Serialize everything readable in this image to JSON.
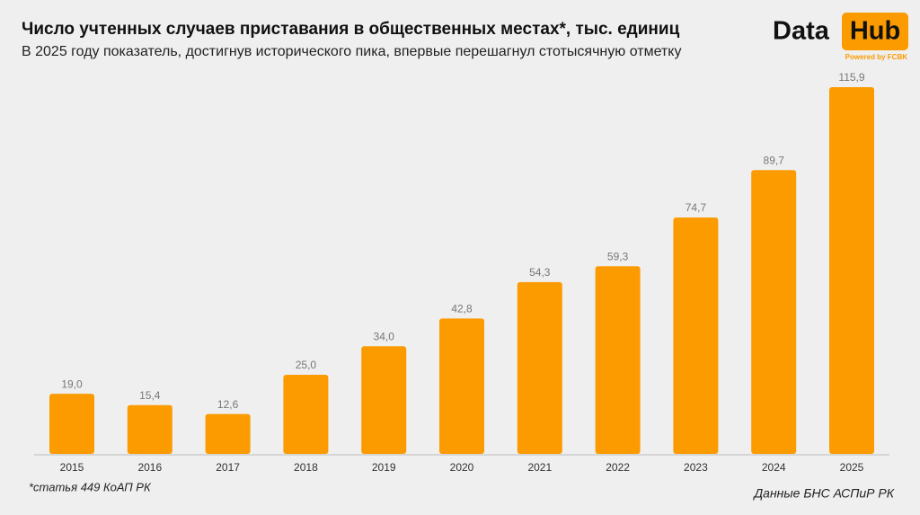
{
  "chart_data": {
    "type": "bar",
    "title": "Число учтенных случаев приставания в общественных местах*, тыс. единиц",
    "subtitle": "В 2025 году показатель, достигнув исторического пика, впервые перешагнул стотысячную отметку",
    "categories": [
      "2015",
      "2016",
      "2017",
      "2018",
      "2019",
      "2020",
      "2021",
      "2022",
      "2023",
      "2024",
      "2025"
    ],
    "values": [
      19.0,
      15.4,
      12.6,
      25.0,
      34.0,
      42.8,
      54.3,
      59.3,
      74.7,
      89.7,
      115.9
    ],
    "value_labels": [
      "19,0",
      "15,4",
      "12,6",
      "25,0",
      "34,0",
      "42,8",
      "54,3",
      "59,3",
      "74,7",
      "89,7",
      "115,9"
    ],
    "color": "#fb9b00",
    "footnote": "*статья 449 КоАП РК",
    "source": "Данные БНС АСПиР РК"
  },
  "logo": {
    "word1": "Data",
    "word2": "Hub",
    "tagline": "Powered by FCBK"
  }
}
